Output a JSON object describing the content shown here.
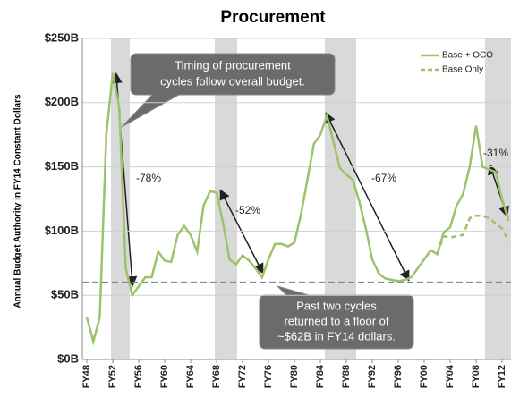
{
  "chart_data": {
    "type": "line",
    "title": "Procurement",
    "y_label": "Annual Budget Authority in FY14 Constant Dollars",
    "categories": [
      "FY48",
      null,
      null,
      null,
      "FY52",
      null,
      null,
      null,
      "FY56",
      null,
      null,
      null,
      "FY60",
      null,
      null,
      null,
      "FY64",
      null,
      null,
      null,
      "FY68",
      null,
      null,
      null,
      "FY72",
      null,
      null,
      null,
      "FY76",
      null,
      null,
      null,
      "FY80",
      null,
      null,
      null,
      "FY84",
      null,
      null,
      null,
      "FY88",
      null,
      null,
      null,
      "FY92",
      null,
      null,
      null,
      "FY96",
      null,
      null,
      null,
      "FY00",
      null,
      null,
      null,
      "FY04",
      null,
      null,
      null,
      "FY08",
      null,
      null,
      null,
      "FY12",
      null
    ],
    "series": [
      {
        "name": "Base + OCO",
        "color": "#9cc26a",
        "dash": false,
        "values": [
          33,
          14,
          33,
          175,
          223,
          196,
          71,
          50,
          57,
          64,
          64,
          84,
          77,
          76,
          97,
          104,
          97,
          84,
          120,
          131,
          130,
          106,
          78,
          74,
          81,
          77,
          71,
          64,
          78,
          90,
          90,
          88,
          91,
          113,
          140,
          168,
          175,
          190,
          170,
          149,
          144,
          140,
          123,
          102,
          78,
          67,
          63,
          62,
          61,
          62,
          64,
          71,
          78,
          85,
          82,
          99,
          103,
          120,
          129,
          150,
          182,
          150,
          148,
          146,
          125,
          108
        ]
      },
      {
        "name": "Base Only",
        "color": "#9cc26a",
        "dash": true,
        "values": [
          null,
          null,
          null,
          null,
          null,
          null,
          null,
          null,
          null,
          null,
          null,
          null,
          null,
          null,
          null,
          null,
          null,
          null,
          null,
          null,
          null,
          null,
          null,
          null,
          null,
          null,
          null,
          null,
          null,
          null,
          null,
          null,
          null,
          null,
          null,
          null,
          null,
          null,
          null,
          null,
          null,
          null,
          null,
          null,
          null,
          null,
          null,
          null,
          null,
          null,
          null,
          null,
          null,
          null,
          82,
          96,
          95,
          96,
          97,
          110,
          112,
          112,
          110,
          106,
          102,
          92
        ]
      }
    ],
    "ylim": [
      0,
      250
    ],
    "yticks": [
      {
        "value": 0,
        "label": "$0B"
      },
      {
        "value": 50,
        "label": "$50B"
      },
      {
        "value": 100,
        "label": "$100B"
      },
      {
        "value": 150,
        "label": "$150B"
      },
      {
        "value": 200,
        "label": "$200B"
      },
      {
        "value": 250,
        "label": "$250B"
      }
    ],
    "grid": true,
    "legend": "upper right",
    "reference_line": 60,
    "callout_top": [
      "Timing of procurement",
      "cycles follow overall budget."
    ],
    "callout_bottom": [
      "Past two cycles",
      "returned to a floor of",
      "~$62B in FY14 dollars."
    ],
    "drops": [
      "-78%",
      "-52%",
      "-67%",
      "-31%"
    ]
  }
}
